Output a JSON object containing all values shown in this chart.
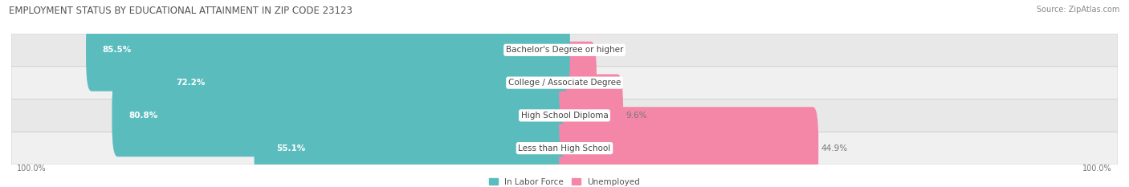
{
  "title": "EMPLOYMENT STATUS BY EDUCATIONAL ATTAINMENT IN ZIP CODE 23123",
  "source": "Source: ZipAtlas.com",
  "categories": [
    "Less than High School",
    "High School Diploma",
    "College / Associate Degree",
    "Bachelor's Degree or higher"
  ],
  "labor_force": [
    55.1,
    80.8,
    72.2,
    85.5
  ],
  "unemployed": [
    44.9,
    9.6,
    4.8,
    0.0
  ],
  "labor_color": "#5bbcbe",
  "unemployed_color": "#f487a8",
  "row_bg_colors": [
    "#f0f0f0",
    "#e8e8e8",
    "#f0f0f0",
    "#e8e8e8"
  ],
  "label_bg_color": "#ffffff",
  "title_fontsize": 8.5,
  "source_fontsize": 7,
  "bar_label_fontsize": 7.5,
  "cat_label_fontsize": 7.5,
  "legend_fontsize": 7.5,
  "axis_label_fontsize": 7,
  "left_axis_label": "100.0%",
  "right_axis_label": "100.0%",
  "background_color": "#ffffff"
}
